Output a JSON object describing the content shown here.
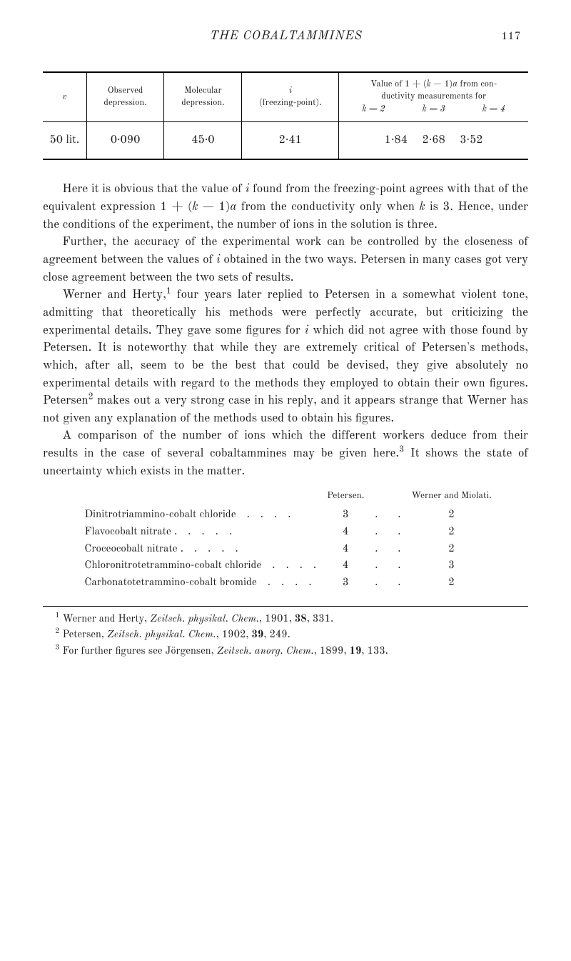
{
  "header": {
    "running_title": "THE COBALTAMMINES",
    "page_number": "117"
  },
  "main_table": {
    "type": "table",
    "colors": {
      "border": "#000000",
      "background": "#ffffff",
      "text": "#1a1a1a"
    },
    "columns": [
      {
        "key": "v",
        "label_html": "<span class='ital'>v</span>",
        "width_pct": 9
      },
      {
        "key": "obs",
        "label_html": "Observed<br>depression.",
        "width_pct": 16
      },
      {
        "key": "mol",
        "label_html": "Molecular<br>depression.",
        "width_pct": 16
      },
      {
        "key": "frz",
        "label_html": "<span class='ital'>i</span><br>(freezing-point).",
        "width_pct": 20
      },
      {
        "key": "val",
        "label_html": "Value of 1 + (<span class='ital'>k</span> − 1)<span class='ital'>a</span> from con-<br>ductivity measurements for<div class='subk'><span>k = 2</span><span>k = 3</span><span>k = 4</span></div>",
        "width_pct": 39
      }
    ],
    "rows": [
      {
        "v": "50 lit.",
        "obs": "0·090",
        "mol": "45·0",
        "frz": "2·41",
        "val": "1·84  2·68  3·52"
      }
    ],
    "header_fontsize": 12.5,
    "cell_fontsize": 16
  },
  "paragraphs": [
    "Here it is obvious that the value of <span class='ital'>i</span> found from the freezing-point agrees with that of the equivalent expression 1 + (<span class='ital'>k</span> − 1)<span class='ital'>a</span> from the conductivity only when <span class='ital'>k</span> is 3. Hence, under the conditions of the experiment, the number of ions in the solution is three.",
    "Further, the accuracy of the experimental work can be controlled by the closeness of agreement between the values of <span class='ital'>i</span> obtained in the two ways. Petersen in many cases got very close agreement between the two sets of results.",
    "Werner and Herty,<sup>1</sup> four years later replied to Petersen in a somewhat violent tone, admitting that theoretically his methods were perfectly accurate, but criticizing the experimental details. They gave some figures for <span class='ital'>i</span> which did not agree with those found by Petersen. It is noteworthy that while they are extremely critical of Petersen's methods, which, after all, seem to be the best that could be devised, they give absolutely no experimental details with regard to the methods they employed to obtain their own figures. Petersen<sup>2</sup> makes out a very strong case in his reply, and it appears strange that Werner has not given any explanation of the methods used to obtain his figures.",
    "A comparison of the number of ions which the different workers deduce from their results in the case of several cobaltammines may be given here.<sup>3</sup> It shows the state of uncertainty which exists in the matter."
  ],
  "comparison_table": {
    "type": "table",
    "headers": {
      "petersen": "Petersen.",
      "werner": "Werner and Miolati."
    },
    "rows": [
      {
        "name": "Dinitrotriammino-cobalt chloride",
        "petersen": "3",
        "werner": "2"
      },
      {
        "name": "Flavocobalt nitrate .",
        "petersen": "4",
        "werner": "2"
      },
      {
        "name": "Croceocobalt nitrate .",
        "petersen": "4",
        "werner": "2"
      },
      {
        "name": "Chloronitrotetrammino-cobalt chloride",
        "petersen": "4",
        "werner": "3"
      },
      {
        "name": "Carbonatotetrammino-cobalt bromide",
        "petersen": "3",
        "werner": "2"
      }
    ],
    "fontsize": 15
  },
  "footnotes": [
    "<sup>1</sup> Werner and Herty, <span class='ital'>Zeitsch. physikal. Chem.</span>, 1901, <b>38</b>, 331.",
    "<sup>2</sup> Petersen, <span class='ital'>Zeitsch. physikal. Chem.</span>, 1902, <b>39</b>, 249.",
    "<sup>3</sup> For further figures see Jörgensen, <span class='ital'>Zeitsch. anorg. Chem.</span>, 1899, <b>19</b>, 133."
  ]
}
